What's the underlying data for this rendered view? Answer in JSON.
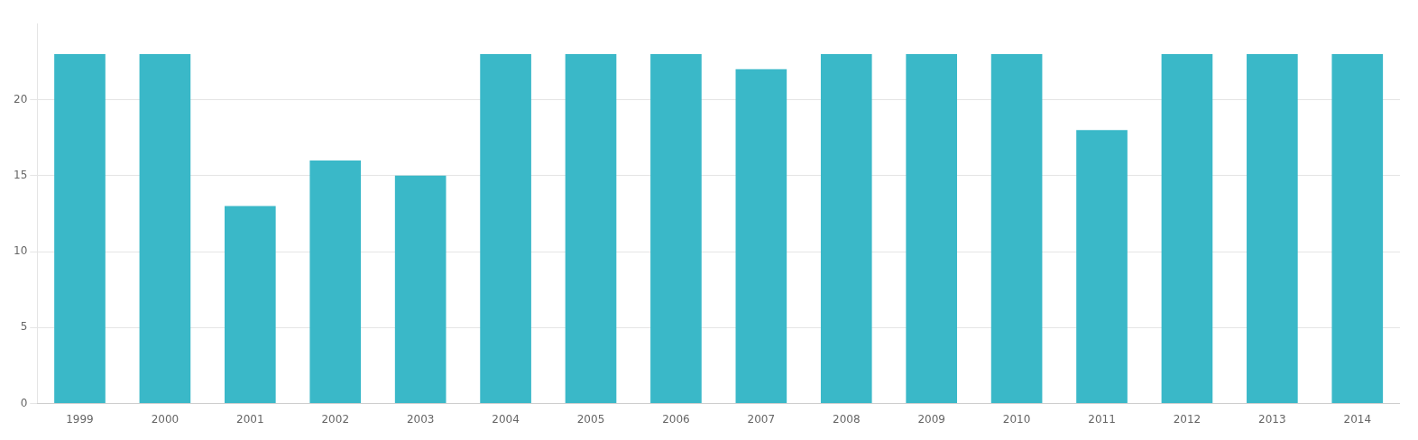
{
  "chart_data": {
    "type": "bar",
    "categories": [
      "1999",
      "2000",
      "2001",
      "2002",
      "2003",
      "2004",
      "2005",
      "2006",
      "2007",
      "2008",
      "2009",
      "2010",
      "2011",
      "2012",
      "2013",
      "2014"
    ],
    "values": [
      23,
      23,
      13,
      16,
      15,
      23,
      23,
      23,
      22,
      23,
      23,
      23,
      18,
      23,
      23,
      23
    ],
    "color": "#3ab8c8",
    "ylim": [
      0,
      25
    ],
    "yticks": [
      0,
      5,
      10,
      15,
      20
    ],
    "grid": true
  }
}
